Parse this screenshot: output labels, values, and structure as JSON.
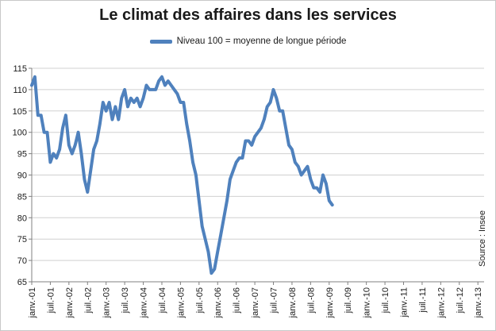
{
  "chart_data": {
    "type": "line",
    "title": "Le climat des affaires dans les services",
    "xlabel": "",
    "ylabel": "",
    "ylim": [
      65,
      115
    ],
    "yticks": [
      65,
      70,
      75,
      80,
      85,
      90,
      95,
      100,
      105,
      110,
      115
    ],
    "grid": true,
    "legend_position": "top-center",
    "source": "Source : Insee",
    "x_tick_labels": [
      "janv.-01",
      "juil.-01",
      "janv.-02",
      "juil.-02",
      "janv.-03",
      "juil.-03",
      "janv.-04",
      "juil.-04",
      "janv.-05",
      "juil.-05",
      "janv.-06",
      "juil.-06",
      "janv.-07",
      "juil.-07",
      "janv.-08",
      "juil.-08",
      "janv.-09",
      "juil.-09",
      "janv.-10",
      "juil.-10",
      "janv.-11",
      "juil.-11",
      "janv.-12",
      "juil.-12",
      "janv.-13"
    ],
    "series": [
      {
        "name": "Niveau 100 = moyenne de longue période",
        "color": "#4f81bd",
        "points": [
          [
            "2001-01",
            111
          ],
          [
            "2001-02",
            113
          ],
          [
            "2001-03",
            104
          ],
          [
            "2001-04",
            104
          ],
          [
            "2001-05",
            100
          ],
          [
            "2001-06",
            100
          ],
          [
            "2001-07",
            93
          ],
          [
            "2001-08",
            95
          ],
          [
            "2001-09",
            94
          ],
          [
            "2001-10",
            96
          ],
          [
            "2001-11",
            101
          ],
          [
            "2001-12",
            104
          ],
          [
            "2002-01",
            97
          ],
          [
            "2002-02",
            95
          ],
          [
            "2002-03",
            97
          ],
          [
            "2002-04",
            100
          ],
          [
            "2002-05",
            95
          ],
          [
            "2002-06",
            89
          ],
          [
            "2002-07",
            86
          ],
          [
            "2002-08",
            91
          ],
          [
            "2002-09",
            96
          ],
          [
            "2002-10",
            98
          ],
          [
            "2002-11",
            102
          ],
          [
            "2002-12",
            107
          ],
          [
            "2003-01",
            105
          ],
          [
            "2003-02",
            107
          ],
          [
            "2003-03",
            103
          ],
          [
            "2003-04",
            106
          ],
          [
            "2003-05",
            103
          ],
          [
            "2003-06",
            108
          ],
          [
            "2003-07",
            110
          ],
          [
            "2003-08",
            106
          ],
          [
            "2003-09",
            108
          ],
          [
            "2003-10",
            107
          ],
          [
            "2003-11",
            108
          ],
          [
            "2003-12",
            106
          ],
          [
            "2004-01",
            108
          ],
          [
            "2004-02",
            111
          ],
          [
            "2004-03",
            110
          ],
          [
            "2004-04",
            110
          ],
          [
            "2004-05",
            110
          ],
          [
            "2004-06",
            112
          ],
          [
            "2004-07",
            113
          ],
          [
            "2004-08",
            111
          ],
          [
            "2004-09",
            112
          ],
          [
            "2004-10",
            111
          ],
          [
            "2004-11",
            110
          ],
          [
            "2004-12",
            109
          ],
          [
            "2005-01",
            107
          ],
          [
            "2005-02",
            107
          ],
          [
            "2005-03",
            102
          ],
          [
            "2005-04",
            98
          ],
          [
            "2005-05",
            93
          ],
          [
            "2005-06",
            90
          ],
          [
            "2005-07",
            84
          ],
          [
            "2005-08",
            78
          ],
          [
            "2005-09",
            75
          ],
          [
            "2005-10",
            72
          ],
          [
            "2005-11",
            67
          ],
          [
            "2005-12",
            68
          ],
          [
            "2006-01",
            72
          ],
          [
            "2006-02",
            76
          ],
          [
            "2006-03",
            80
          ],
          [
            "2006-04",
            84
          ],
          [
            "2006-05",
            89
          ],
          [
            "2006-06",
            91
          ],
          [
            "2006-07",
            93
          ],
          [
            "2006-08",
            94
          ],
          [
            "2006-09",
            94
          ],
          [
            "2006-10",
            98
          ],
          [
            "2006-11",
            98
          ],
          [
            "2006-12",
            97
          ],
          [
            "2007-01",
            99
          ],
          [
            "2007-02",
            100
          ],
          [
            "2007-03",
            101
          ],
          [
            "2007-04",
            103
          ],
          [
            "2007-05",
            106
          ],
          [
            "2007-06",
            107
          ],
          [
            "2007-07",
            110
          ],
          [
            "2007-08",
            108
          ],
          [
            "2007-09",
            105
          ],
          [
            "2007-10",
            105
          ],
          [
            "2007-11",
            101
          ],
          [
            "2007-12",
            97
          ],
          [
            "2008-01",
            96
          ],
          [
            "2008-02",
            93
          ],
          [
            "2008-03",
            92
          ],
          [
            "2008-04",
            90
          ],
          [
            "2008-05",
            91
          ],
          [
            "2008-06",
            92
          ],
          [
            "2008-07",
            89
          ],
          [
            "2008-08",
            87
          ],
          [
            "2008-09",
            87
          ],
          [
            "2008-10",
            86
          ],
          [
            "2008-11",
            90
          ],
          [
            "2008-12",
            88
          ],
          [
            "2009-01",
            84
          ],
          [
            "2009-02",
            83
          ]
        ]
      }
    ]
  }
}
